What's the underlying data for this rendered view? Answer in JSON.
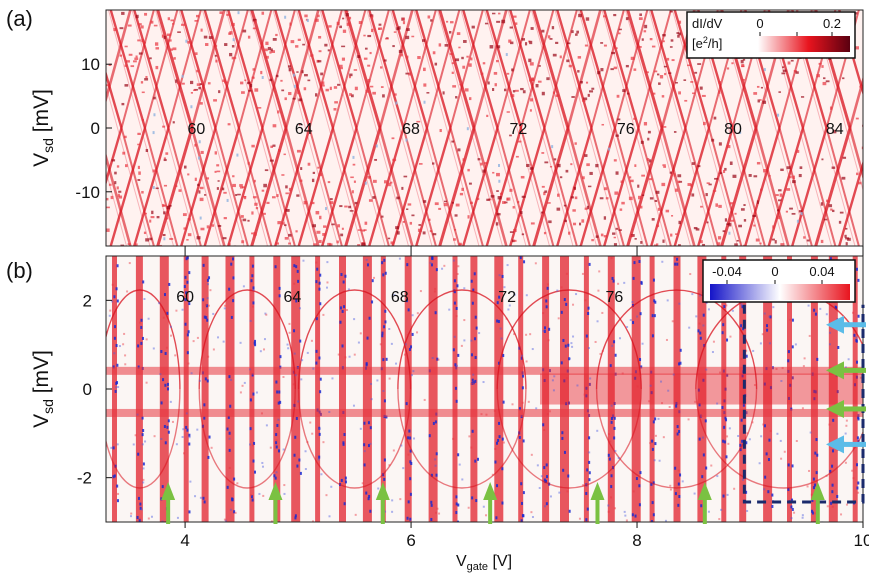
{
  "chart_data": [
    {
      "type": "heatmap",
      "panel_label": "(a)",
      "ylabel_main": "V",
      "ylabel_sub": "sd",
      "ylabel_unit": " [mV]",
      "yticks": [
        10,
        0,
        -10
      ],
      "ytick_labels": [
        "10",
        "0",
        "-10"
      ],
      "ylim": [
        -18.5,
        18.5
      ],
      "xlim": [
        3.3,
        10.0
      ],
      "electron_numbers": [
        {
          "label": "60",
          "x": 4.1
        },
        {
          "label": "64",
          "x": 5.05
        },
        {
          "label": "68",
          "x": 6.0
        },
        {
          "label": "72",
          "x": 6.95
        },
        {
          "label": "76",
          "x": 7.9
        },
        {
          "label": "80",
          "x": 8.85
        },
        {
          "label": "84",
          "x": 9.75
        }
      ],
      "colorbar": {
        "title_line1": "dI/dV",
        "title_line2_pre": "[e",
        "title_line2_sup": "2",
        "title_line2_post": "/h]",
        "tick_labels": [
          "0",
          "0.2"
        ],
        "range": [
          0,
          0.25
        ],
        "colors": [
          "#ffffff",
          "#e8141e",
          "#5a0010"
        ]
      }
    },
    {
      "type": "heatmap",
      "panel_label": "(b)",
      "ylabel_main": "V",
      "ylabel_sub": "sd",
      "ylabel_unit": " [mV]",
      "yticks": [
        2,
        0,
        -2
      ],
      "ytick_labels": [
        "2",
        "0",
        "-2"
      ],
      "ylim": [
        -3.0,
        3.0
      ],
      "xlim": [
        3.3,
        10.0
      ],
      "xticks": [
        4,
        6,
        8,
        10
      ],
      "xtick_labels": [
        "4",
        "6",
        "8",
        "10"
      ],
      "xlabel_main": "V",
      "xlabel_sub": "gate",
      "xlabel_unit": " [V]",
      "electron_numbers": [
        {
          "label": "60",
          "x": 4.0
        },
        {
          "label": "64",
          "x": 4.95
        },
        {
          "label": "68",
          "x": 5.9
        },
        {
          "label": "72",
          "x": 6.85
        },
        {
          "label": "76",
          "x": 7.8
        }
      ],
      "colorbar": {
        "tick_labels": [
          "-0.04",
          "0",
          "0.04"
        ],
        "range": [
          -0.06,
          0.06
        ],
        "colors": [
          "#1414c8",
          "#ffffff",
          "#e8141e"
        ]
      },
      "up_arrows_green_x": [
        3.85,
        4.8,
        5.75,
        6.7,
        7.65,
        8.6,
        9.6
      ],
      "side_arrows": [
        {
          "color": "#5bbce8",
          "y": 1.45
        },
        {
          "color": "#7ac142",
          "y": 0.42
        },
        {
          "color": "#7ac142",
          "y": -0.45
        },
        {
          "color": "#5bbce8",
          "y": -1.25
        }
      ],
      "dashed_box": {
        "x": [
          8.95,
          10.0
        ],
        "y": [
          -2.55,
          1.9
        ],
        "color": "#1a2a6c"
      }
    }
  ]
}
